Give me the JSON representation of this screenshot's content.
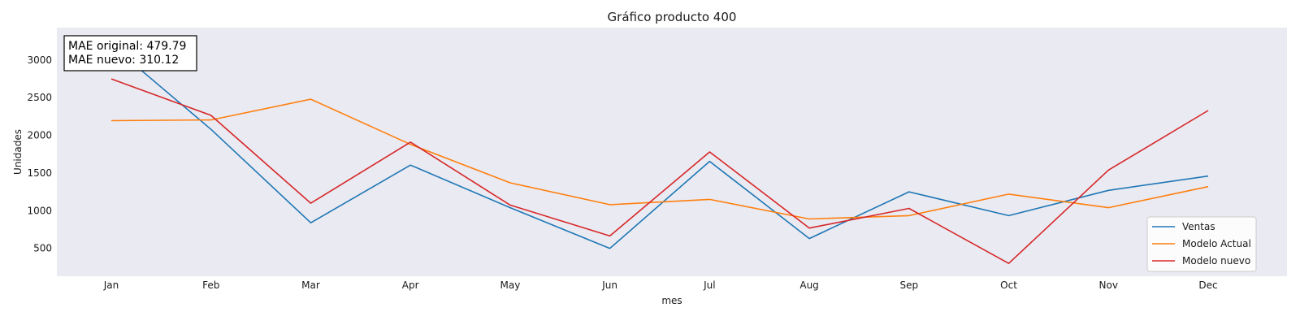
{
  "chart_data": {
    "type": "line",
    "title": "Gráfico producto 400",
    "xlabel": "mes",
    "ylabel": "Unidades",
    "categories": [
      "Jan",
      "Feb",
      "Mar",
      "Apr",
      "May",
      "Jun",
      "Jul",
      "Aug",
      "Sep",
      "Oct",
      "Nov",
      "Dec"
    ],
    "y_ticks": [
      500,
      1000,
      1500,
      2000,
      2500,
      3000
    ],
    "ylim": [
      130,
      3430
    ],
    "grid": false,
    "legend_position": "lower right",
    "annotation": {
      "line1": "MAE original: 479.79",
      "line2": "MAE nuevo: 310.12"
    },
    "series": [
      {
        "name": "Ventas",
        "color": "#1f77b4",
        "values": [
          3200,
          2080,
          840,
          1605,
          1040,
          500,
          1655,
          630,
          1250,
          935,
          1270,
          1460
        ]
      },
      {
        "name": "Modelo Actual",
        "color": "#ff7f0e",
        "values": [
          2195,
          2205,
          2480,
          1880,
          1370,
          1080,
          1150,
          890,
          935,
          1220,
          1040,
          1320
        ]
      },
      {
        "name": "Modelo nuevo",
        "color": "#d62728",
        "values": [
          2750,
          2265,
          1100,
          1910,
          1075,
          665,
          1780,
          770,
          1030,
          300,
          1540,
          2330
        ]
      }
    ]
  },
  "colors": {
    "plot_background": "#eaeaf2",
    "text": "#1a1a1a"
  }
}
